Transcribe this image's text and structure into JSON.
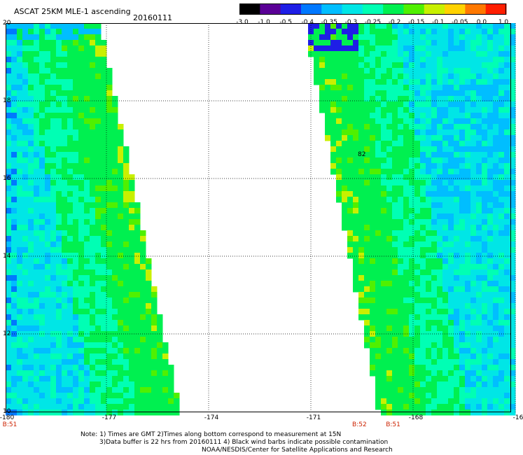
{
  "title": "ASCAT 25KM MLE-1 ascending",
  "date": "20160111",
  "colorbar": {
    "labels": [
      "-3.0",
      "-1.0",
      "-0.5",
      "-0.4",
      "-0.35",
      "-0.3",
      "-0.25",
      "-0.2",
      "-0.15",
      "-0.1",
      "-0.05",
      "0.0",
      "1.0"
    ],
    "colors": [
      "#000000",
      "#5a0096",
      "#1e1ee6",
      "#0078ff",
      "#00beff",
      "#00e6e6",
      "#00ffb4",
      "#00f050",
      "#50f000",
      "#c8f000",
      "#ffd200",
      "#ff7800",
      "#ff1e00"
    ]
  },
  "lat_labels": [
    "20",
    "18",
    "16",
    "14",
    "12",
    "10"
  ],
  "lon_labels": [
    "-180",
    "-177",
    "-174",
    "-171",
    "-168",
    "-16"
  ],
  "time_labels": [
    {
      "text": "B:51",
      "lon": -180
    },
    {
      "text": "B:52",
      "lon": -169.5
    },
    {
      "text": "B:51",
      "lon": -168.5
    }
  ],
  "marker": "82",
  "notes": [
    "Note: 1) Times are GMT 2)Times along bottom correspond to measurement at 15N",
    "3)Data buffer is 22 hrs from 20160111 4) Black wind barbs indicate possible contamination",
    "NOAA/NESDIS/Center for Satellite Applications and Research"
  ]
}
